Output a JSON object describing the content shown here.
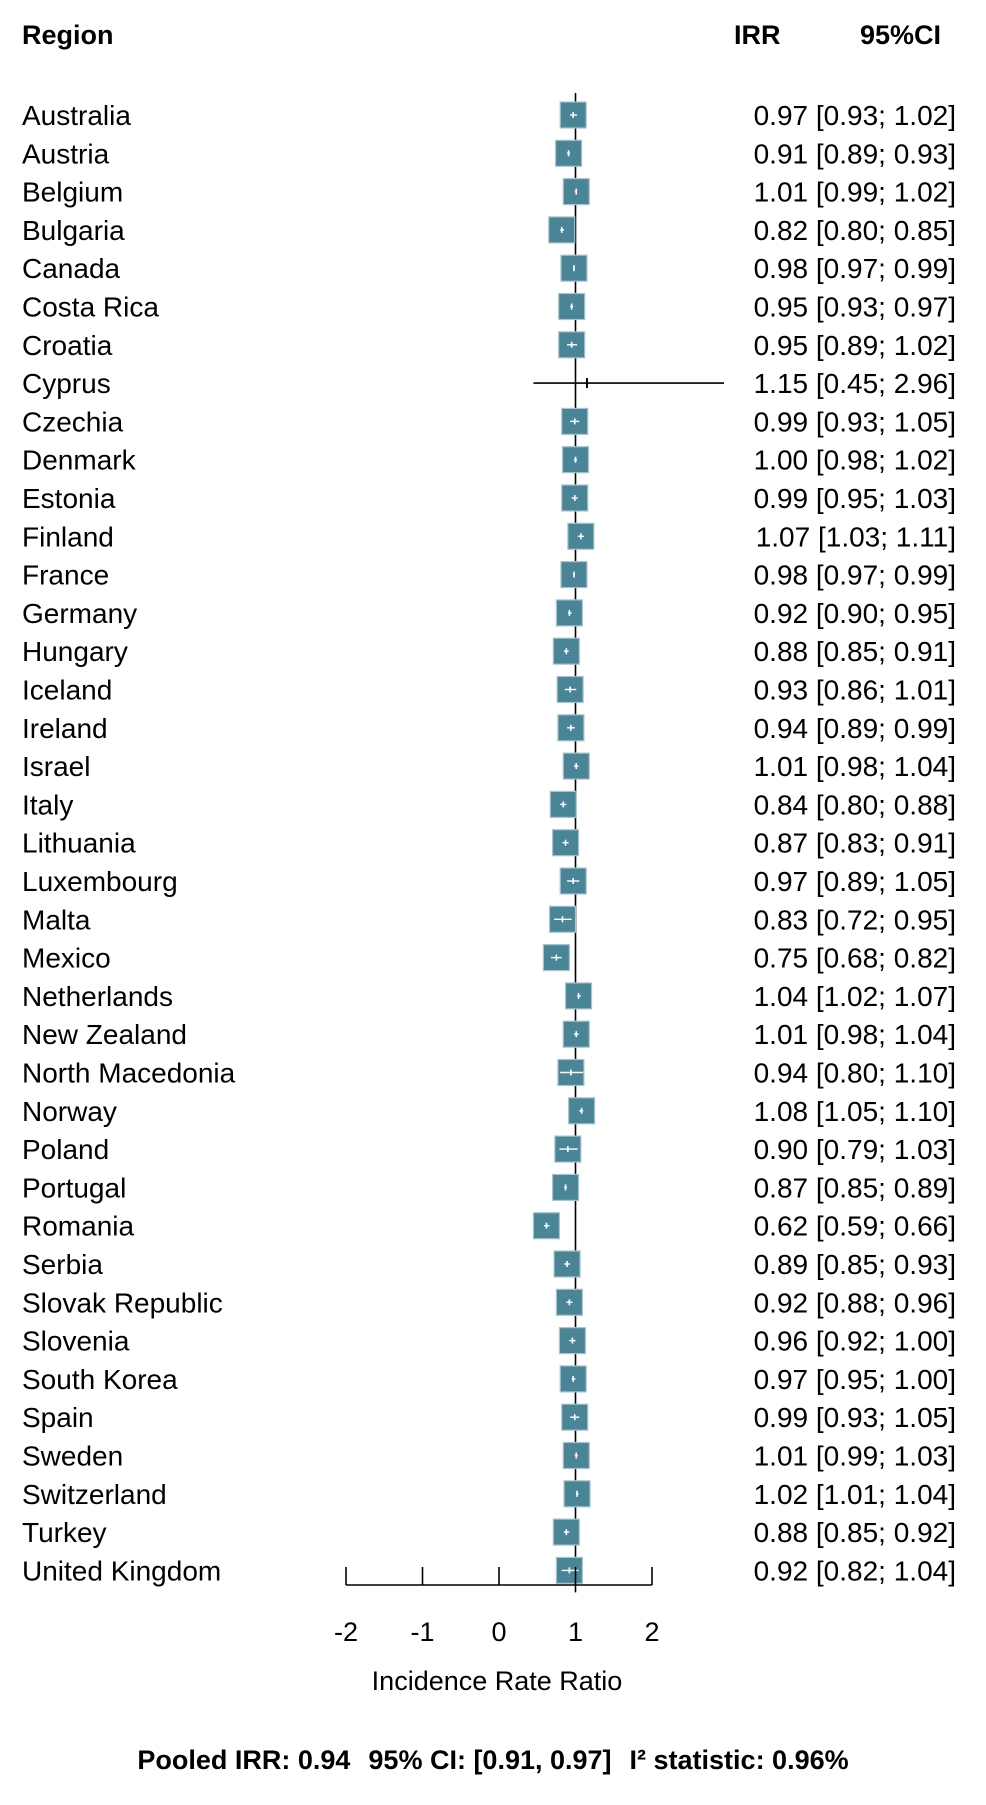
{
  "headers": {
    "region": "Region",
    "irr": "IRR",
    "ci": "95%CI"
  },
  "chart_data": {
    "type": "forest",
    "xlabel": "Incidence Rate Ratio",
    "xlim": [
      -2,
      2
    ],
    "xticks": [
      -2,
      -1,
      0,
      1,
      2
    ],
    "reference_line": 1,
    "marker_color": "#4a8597",
    "rows": [
      {
        "region": "Australia",
        "irr": 0.97,
        "lo": 0.93,
        "hi": 1.02,
        "text": "0.97 [0.93; 1.02]"
      },
      {
        "region": "Austria",
        "irr": 0.91,
        "lo": 0.89,
        "hi": 0.93,
        "text": "0.91 [0.89; 0.93]"
      },
      {
        "region": "Belgium",
        "irr": 1.01,
        "lo": 0.99,
        "hi": 1.02,
        "text": "1.01 [0.99; 1.02]"
      },
      {
        "region": "Bulgaria",
        "irr": 0.82,
        "lo": 0.8,
        "hi": 0.85,
        "text": "0.82 [0.80; 0.85]"
      },
      {
        "region": "Canada",
        "irr": 0.98,
        "lo": 0.97,
        "hi": 0.99,
        "text": "0.98 [0.97; 0.99]"
      },
      {
        "region": "Costa Rica",
        "irr": 0.95,
        "lo": 0.93,
        "hi": 0.97,
        "text": "0.95 [0.93; 0.97]"
      },
      {
        "region": "Croatia",
        "irr": 0.95,
        "lo": 0.89,
        "hi": 1.02,
        "text": "0.95 [0.89; 1.02]"
      },
      {
        "region": "Cyprus",
        "irr": 1.15,
        "lo": 0.45,
        "hi": 2.96,
        "text": "1.15 [0.45; 2.96]",
        "no_box": true
      },
      {
        "region": "Czechia",
        "irr": 0.99,
        "lo": 0.93,
        "hi": 1.05,
        "text": "0.99 [0.93; 1.05]"
      },
      {
        "region": "Denmark",
        "irr": 1.0,
        "lo": 0.98,
        "hi": 1.02,
        "text": "1.00 [0.98; 1.02]"
      },
      {
        "region": "Estonia",
        "irr": 0.99,
        "lo": 0.95,
        "hi": 1.03,
        "text": "0.99 [0.95; 1.03]"
      },
      {
        "region": "Finland",
        "irr": 1.07,
        "lo": 1.03,
        "hi": 1.11,
        "text": "1.07 [1.03; 1.11]"
      },
      {
        "region": "France",
        "irr": 0.98,
        "lo": 0.97,
        "hi": 0.99,
        "text": "0.98 [0.97; 0.99]"
      },
      {
        "region": "Germany",
        "irr": 0.92,
        "lo": 0.9,
        "hi": 0.95,
        "text": "0.92 [0.90; 0.95]"
      },
      {
        "region": "Hungary",
        "irr": 0.88,
        "lo": 0.85,
        "hi": 0.91,
        "text": "0.88 [0.85; 0.91]"
      },
      {
        "region": "Iceland",
        "irr": 0.93,
        "lo": 0.86,
        "hi": 1.01,
        "text": "0.93 [0.86; 1.01]"
      },
      {
        "region": "Ireland",
        "irr": 0.94,
        "lo": 0.89,
        "hi": 0.99,
        "text": "0.94 [0.89; 0.99]"
      },
      {
        "region": "Israel",
        "irr": 1.01,
        "lo": 0.98,
        "hi": 1.04,
        "text": "1.01 [0.98; 1.04]"
      },
      {
        "region": "Italy",
        "irr": 0.84,
        "lo": 0.8,
        "hi": 0.88,
        "text": "0.84 [0.80; 0.88]"
      },
      {
        "region": "Lithuania",
        "irr": 0.87,
        "lo": 0.83,
        "hi": 0.91,
        "text": "0.87 [0.83; 0.91]"
      },
      {
        "region": "Luxembourg",
        "irr": 0.97,
        "lo": 0.89,
        "hi": 1.05,
        "text": "0.97 [0.89; 1.05]"
      },
      {
        "region": "Malta",
        "irr": 0.83,
        "lo": 0.72,
        "hi": 0.95,
        "text": "0.83 [0.72; 0.95]"
      },
      {
        "region": "Mexico",
        "irr": 0.75,
        "lo": 0.68,
        "hi": 0.82,
        "text": "0.75 [0.68; 0.82]"
      },
      {
        "region": "Netherlands",
        "irr": 1.04,
        "lo": 1.02,
        "hi": 1.07,
        "text": "1.04 [1.02; 1.07]"
      },
      {
        "region": "New Zealand",
        "irr": 1.01,
        "lo": 0.98,
        "hi": 1.04,
        "text": "1.01 [0.98; 1.04]"
      },
      {
        "region": "North Macedonia",
        "irr": 0.94,
        "lo": 0.8,
        "hi": 1.1,
        "text": "0.94 [0.80; 1.10]"
      },
      {
        "region": "Norway",
        "irr": 1.08,
        "lo": 1.05,
        "hi": 1.1,
        "text": "1.08 [1.05; 1.10]"
      },
      {
        "region": "Poland",
        "irr": 0.9,
        "lo": 0.79,
        "hi": 1.03,
        "text": "0.90 [0.79; 1.03]"
      },
      {
        "region": "Portugal",
        "irr": 0.87,
        "lo": 0.85,
        "hi": 0.89,
        "text": "0.87 [0.85; 0.89]"
      },
      {
        "region": "Romania",
        "irr": 0.62,
        "lo": 0.59,
        "hi": 0.66,
        "text": "0.62 [0.59; 0.66]"
      },
      {
        "region": "Serbia",
        "irr": 0.89,
        "lo": 0.85,
        "hi": 0.93,
        "text": "0.89 [0.85; 0.93]"
      },
      {
        "region": "Slovak Republic",
        "irr": 0.92,
        "lo": 0.88,
        "hi": 0.96,
        "text": "0.92 [0.88; 0.96]"
      },
      {
        "region": "Slovenia",
        "irr": 0.96,
        "lo": 0.92,
        "hi": 1.0,
        "text": "0.96 [0.92; 1.00]"
      },
      {
        "region": "South Korea",
        "irr": 0.97,
        "lo": 0.95,
        "hi": 1.0,
        "text": "0.97 [0.95; 1.00]"
      },
      {
        "region": "Spain",
        "irr": 0.99,
        "lo": 0.93,
        "hi": 1.05,
        "text": "0.99 [0.93; 1.05]"
      },
      {
        "region": "Sweden",
        "irr": 1.01,
        "lo": 0.99,
        "hi": 1.03,
        "text": "1.01 [0.99; 1.03]"
      },
      {
        "region": "Switzerland",
        "irr": 1.02,
        "lo": 1.01,
        "hi": 1.04,
        "text": "1.02 [1.01; 1.04]"
      },
      {
        "region": "Turkey",
        "irr": 0.88,
        "lo": 0.85,
        "hi": 0.92,
        "text": "0.88 [0.85; 0.92]"
      },
      {
        "region": "United Kingdom",
        "irr": 0.92,
        "lo": 0.82,
        "hi": 1.04,
        "text": "0.92 [0.82; 1.04]"
      }
    ]
  },
  "footer": {
    "pooled": "Pooled IRR: 0.94",
    "ci": "95% CI: [0.91, 0.97]",
    "i2": "I² statistic: 0.96%"
  }
}
